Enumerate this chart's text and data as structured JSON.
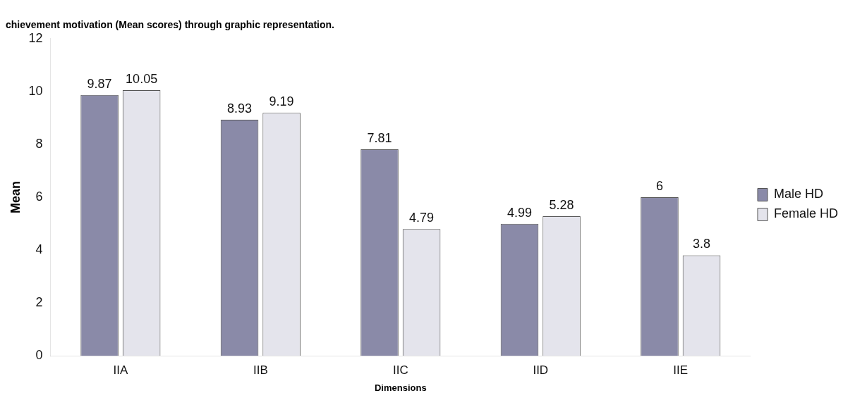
{
  "chart_data": {
    "type": "bar",
    "title": "chievement motivation (Mean scores) through graphic representation.",
    "xlabel": "Dimensions",
    "ylabel": "Mean",
    "categories": [
      "IIA",
      "IIB",
      "IIC",
      "IID",
      "IIE"
    ],
    "series": [
      {
        "name": "Male HD",
        "color": "#8a8aa8",
        "values": [
          9.87,
          8.93,
          7.81,
          4.99,
          6
        ]
      },
      {
        "name": "Female HD",
        "color": "#e4e4ec",
        "values": [
          10.05,
          9.19,
          4.79,
          5.28,
          3.8
        ]
      }
    ],
    "ylim": [
      0,
      12
    ],
    "yticks": [
      0,
      2,
      4,
      6,
      8,
      10,
      12
    ],
    "grid": false,
    "legend": "right",
    "data_labels": true
  }
}
